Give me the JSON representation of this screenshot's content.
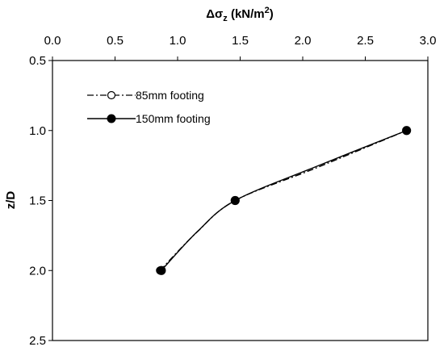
{
  "chart_data": {
    "type": "line",
    "title": "",
    "xlabel_prefix": "Δσ",
    "xlabel_sub": "z",
    "xlabel_unit": " (kN/m",
    "xlabel_sup": "2",
    "xlabel_close": ")",
    "ylabel": "z/D",
    "xlim": [
      0.0,
      3.0
    ],
    "ylim": [
      0.5,
      2.5
    ],
    "y_inverted": true,
    "x_axis_position": "top",
    "xticks": [
      0.0,
      0.5,
      1.0,
      1.5,
      2.0,
      2.5,
      3.0
    ],
    "yticks": [
      0.5,
      1.0,
      1.5,
      2.0,
      2.5
    ],
    "grid": false,
    "legend_position": "top-left",
    "series": [
      {
        "name": "85mm footing",
        "line_style": "dash-dot",
        "marker": "open-circle",
        "color": "#000000",
        "points": [
          [
            0.86,
            2.0
          ],
          [
            1.15,
            1.73
          ],
          [
            1.46,
            1.5
          ],
          [
            2.1,
            1.27
          ],
          [
            2.83,
            1.0
          ]
        ]
      },
      {
        "name": "150mm footing",
        "line_style": "solid",
        "marker": "filled-circle",
        "color": "#000000",
        "points": [
          [
            0.87,
            2.0
          ],
          [
            1.16,
            1.72
          ],
          [
            1.46,
            1.5
          ],
          [
            2.1,
            1.26
          ],
          [
            2.83,
            1.0
          ]
        ]
      }
    ]
  }
}
